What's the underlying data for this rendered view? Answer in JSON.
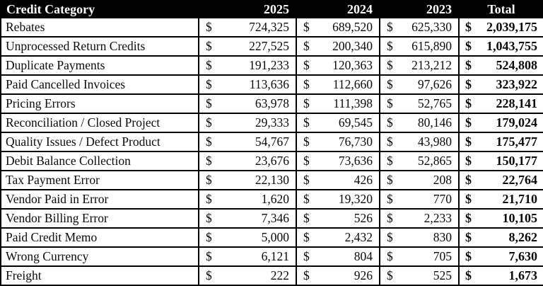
{
  "colors": {
    "header_bg": "#000000",
    "header_text": "#ffffff",
    "row_bg": "#ffffff",
    "text": "#0a0a0a",
    "border": "#000000",
    "page_bg": "#ffffff"
  },
  "table": {
    "currency_symbol": "$",
    "columns": [
      "Credit Category",
      "2025",
      "2024",
      "2023",
      "Total"
    ],
    "rows": [
      {
        "category": "Rebates",
        "y2025": "724,325",
        "y2024": "689,520",
        "y2023": "625,330",
        "total": "2,039,175"
      },
      {
        "category": "Unprocessed Return Credits",
        "y2025": "227,525",
        "y2024": "200,340",
        "y2023": "615,890",
        "total": "1,043,755"
      },
      {
        "category": "Duplicate Payments",
        "y2025": "191,233",
        "y2024": "120,363",
        "y2023": "213,212",
        "total": "524,808"
      },
      {
        "category": "Paid Cancelled Invoices",
        "y2025": "113,636",
        "y2024": "112,660",
        "y2023": "97,626",
        "total": "323,922"
      },
      {
        "category": "Pricing Errors",
        "y2025": "63,978",
        "y2024": "111,398",
        "y2023": "52,765",
        "total": "228,141"
      },
      {
        "category": "Reconciliation / Closed Project",
        "y2025": "29,333",
        "y2024": "69,545",
        "y2023": "80,146",
        "total": "179,024"
      },
      {
        "category": "Quality Issues / Defect Product",
        "y2025": "54,767",
        "y2024": "76,730",
        "y2023": "43,980",
        "total": "175,477"
      },
      {
        "category": "Debit Balance Collection",
        "y2025": "23,676",
        "y2024": "73,636",
        "y2023": "52,865",
        "total": "150,177"
      },
      {
        "category": "Tax Payment Error",
        "y2025": "22,130",
        "y2024": "426",
        "y2023": "208",
        "total": "22,764"
      },
      {
        "category": "Vendor Paid in Error",
        "y2025": "1,620",
        "y2024": "19,320",
        "y2023": "770",
        "total": "21,710"
      },
      {
        "category": "Vendor Billing Error",
        "y2025": "7,346",
        "y2024": "526",
        "y2023": "2,233",
        "total": "10,105"
      },
      {
        "category": "Paid Credit Memo",
        "y2025": "5,000",
        "y2024": "2,432",
        "y2023": "830",
        "total": "8,262"
      },
      {
        "category": "Wrong Currency",
        "y2025": "6,121",
        "y2024": "804",
        "y2023": "705",
        "total": "7,630"
      },
      {
        "category": "Freight",
        "y2025": "222",
        "y2024": "926",
        "y2023": "525",
        "total": "1,673"
      }
    ]
  }
}
